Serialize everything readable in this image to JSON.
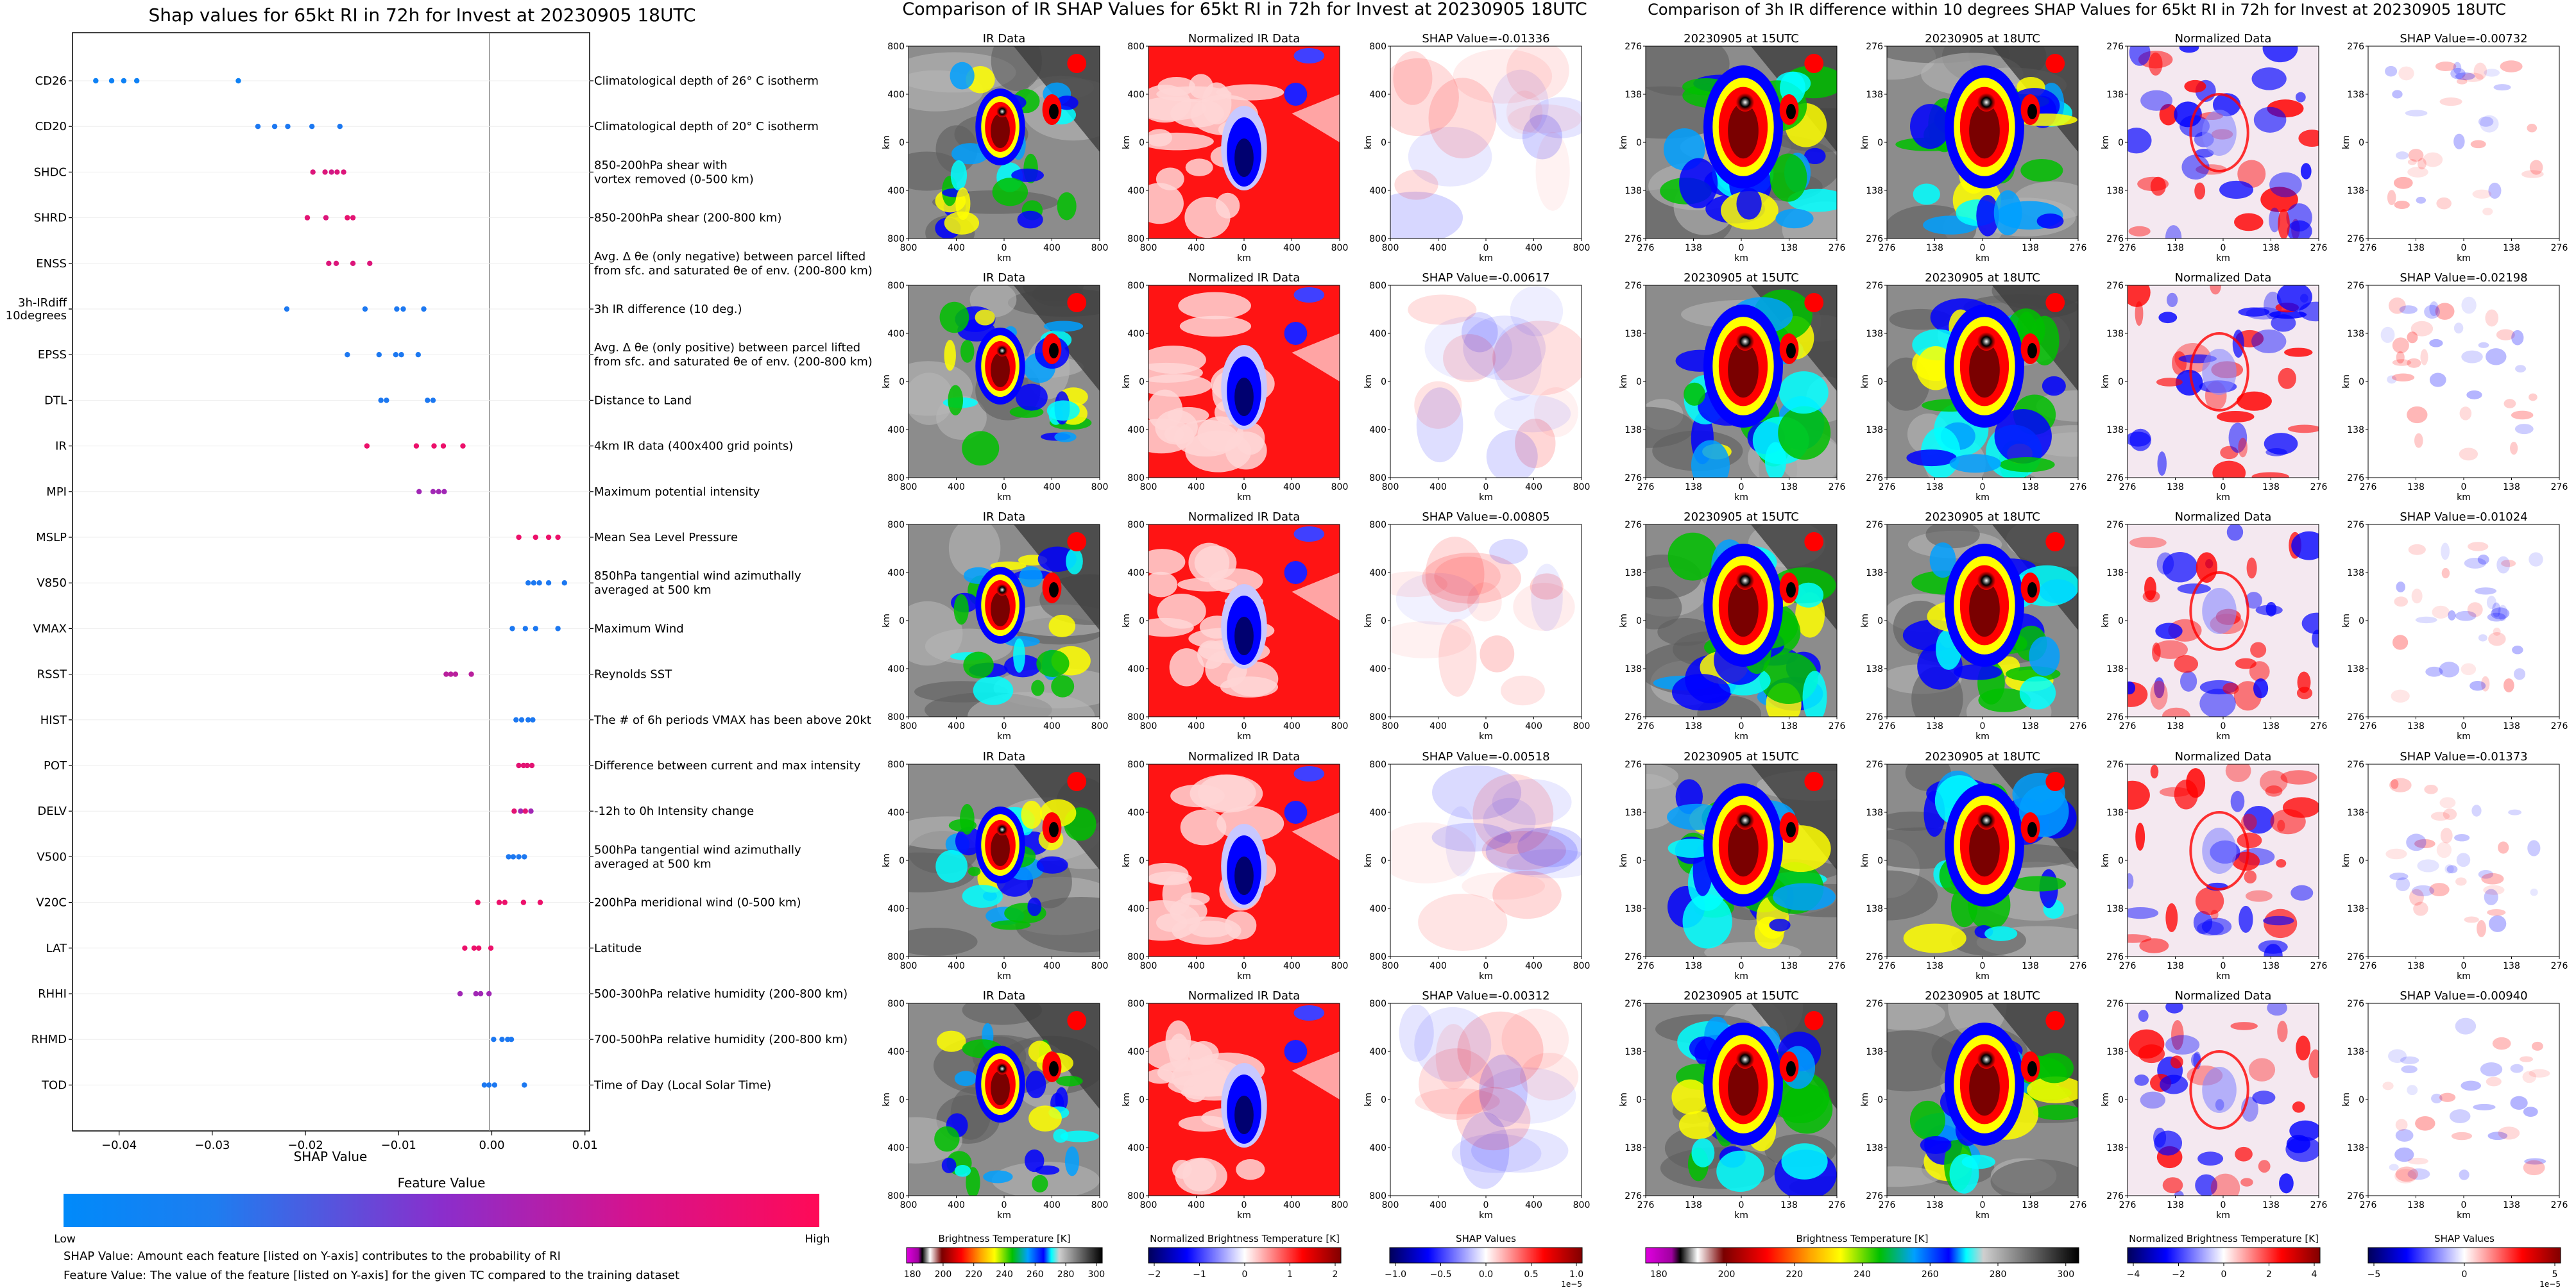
{
  "colors": {
    "feature_low": "#008afa",
    "feature_mid": "#8a2ecc",
    "feature_high": "#ff0a57",
    "shap_neg": "#0000ff",
    "shap_pos": "#ff0000"
  },
  "left": {
    "title": "Shap values for 65kt RI in 72h for Invest at 20230905 18UTC",
    "xlabel": "SHAP Value",
    "colorbar_title": "Feature Value",
    "colorbar_low": "Low",
    "colorbar_high": "High",
    "notes": [
      "SHAP Value: Amount each feature [listed on Y-axis] contributes to the probability of RI",
      "Feature Value: The value of the feature [listed on Y-axis] for the given TC compared to the training dataset"
    ]
  },
  "middle": {
    "title": "Comparison of IR SHAP Values for 65kt RI in 72h for Invest at 20230905 18UTC",
    "col_titles": [
      "IR Data",
      "Normalized IR Data"
    ],
    "shap_titles": [
      "SHAP Value=-0.01336",
      "SHAP Value=-0.00617",
      "SHAP Value=-0.00805",
      "SHAP Value=-0.00518",
      "SHAP Value=-0.00312"
    ],
    "yticks": [
      "800",
      "400",
      "0",
      "400",
      "800"
    ],
    "xticks": [
      "800",
      "400",
      "0",
      "400",
      "800"
    ],
    "axis_label": "km",
    "colorbars": [
      {
        "label": "Brightness Temperature [K]",
        "ticks": [
          "180",
          "200",
          "220",
          "240",
          "260",
          "280",
          "300"
        ]
      },
      {
        "label": "Normalized Brightness Temperature [K]",
        "ticks": [
          "−2",
          "−1",
          "0",
          "1",
          "2"
        ]
      },
      {
        "label": "SHAP Values",
        "ticks": [
          "−1.0",
          "−0.5",
          "0.0",
          "0.5",
          "1.0"
        ],
        "offset": "1e−5"
      }
    ]
  },
  "right": {
    "title": "Comparison of 3h IR difference within 10 degrees SHAP Values for 65kt RI in 72h for Invest at 20230905 18UTC",
    "col_titles": [
      "20230905 at 15UTC",
      "20230905 at 18UTC",
      "Normalized Data"
    ],
    "shap_titles": [
      "SHAP Value=-0.00732",
      "SHAP Value=-0.02198",
      "SHAP Value=-0.01024",
      "SHAP Value=-0.01373",
      "SHAP Value=-0.00940"
    ],
    "yticks": [
      "276",
      "138",
      "0",
      "138",
      "276"
    ],
    "xticks": [
      "276",
      "138",
      "0",
      "138",
      "276"
    ],
    "axis_label": "km",
    "colorbars": [
      {
        "label": "Brightness Temperature [K]",
        "ticks": [
          "180",
          "200",
          "220",
          "240",
          "260",
          "280",
          "300"
        ]
      },
      {
        "label": "Normalized Brightness Temperature [K]",
        "ticks": [
          "−4",
          "−2",
          "0",
          "2",
          "4"
        ]
      },
      {
        "label": "SHAP Values",
        "ticks": [
          "−5",
          "0",
          "5"
        ],
        "offset": "1e−5"
      }
    ]
  },
  "chart_data": {
    "type": "scatter",
    "title": "Shap values for 65kt RI in 72h for Invest at 20230905 18UTC",
    "xlabel": "SHAP Value",
    "xlim": [
      -0.045,
      0.0105
    ],
    "xticks": [
      -0.04,
      -0.03,
      -0.02,
      -0.01,
      0.0,
      0.01
    ],
    "xtick_labels": [
      "−0.04",
      "−0.03",
      "−0.02",
      "−0.01",
      "0.00",
      "0.01"
    ],
    "zero_line": true,
    "features": [
      {
        "name": "CD26",
        "desc": [
          "Climatological depth of 26° C isotherm"
        ],
        "shap": [
          -0.0425,
          -0.0408,
          -0.0395,
          -0.0381,
          -0.0272
        ],
        "fv": [
          0.05,
          0.05,
          0.05,
          0.05,
          0.05
        ]
      },
      {
        "name": "CD20",
        "desc": [
          "Climatological depth of 20° C isotherm"
        ],
        "shap": [
          -0.0251,
          -0.0233,
          -0.0219,
          -0.0193,
          -0.0163
        ],
        "fv": [
          0.1,
          0.1,
          0.1,
          0.1,
          0.1
        ]
      },
      {
        "name": "SHDC",
        "desc": [
          "850-200hPa shear with",
          "vortex removed (0-500 km)"
        ],
        "shap": [
          -0.0192,
          -0.0179,
          -0.0172,
          -0.0166,
          -0.0159
        ],
        "fv": [
          0.85,
          0.85,
          0.8,
          0.85,
          0.85
        ]
      },
      {
        "name": "SHRD",
        "desc": [
          "850-200hPa shear (200-800 km)"
        ],
        "shap": [
          -0.0198,
          -0.0178,
          -0.0155,
          -0.0149
        ],
        "fv": [
          0.88,
          0.85,
          0.9,
          0.88
        ]
      },
      {
        "name": "ENSS",
        "desc": [
          "Avg. Δ θe (only negative) between parcel lifted",
          "from sfc. and saturated θe of env. (200-800 km)"
        ],
        "shap": [
          -0.0175,
          -0.0167,
          -0.0149,
          -0.0131
        ],
        "fv": [
          0.85,
          0.85,
          0.85,
          0.85
        ]
      },
      {
        "name": "3h-IRdiff\n10degrees",
        "desc": [
          "3h IR difference (10 deg.)"
        ],
        "shap": [
          -0.022,
          -0.0136,
          -0.0102,
          -0.0095,
          -0.0073
        ],
        "fv": [
          0.1,
          0.1,
          0.1,
          0.1,
          0.1
        ]
      },
      {
        "name": "EPSS",
        "desc": [
          "Avg. Δ θe (only positive) between parcel lifted",
          "from sfc. and saturated θe of env. (200-800 km)"
        ],
        "shap": [
          -0.0155,
          -0.0121,
          -0.0103,
          -0.0097,
          -0.0079
        ],
        "fv": [
          0.1,
          0.1,
          0.1,
          0.1,
          0.1
        ]
      },
      {
        "name": "DTL",
        "desc": [
          "Distance to Land"
        ],
        "shap": [
          -0.0119,
          -0.0113,
          -0.0069,
          -0.0063
        ],
        "fv": [
          0.1,
          0.1,
          0.1,
          0.1
        ]
      },
      {
        "name": "IR",
        "desc": [
          "4km IR data (400x400 grid points)"
        ],
        "shap": [
          -0.0134,
          -0.0081,
          -0.0062,
          -0.0052,
          -0.0031
        ],
        "fv": [
          0.92,
          0.92,
          0.92,
          0.92,
          0.92
        ]
      },
      {
        "name": "MPI",
        "desc": [
          "Maximum potential intensity"
        ],
        "shap": [
          -0.0078,
          -0.0063,
          -0.0057,
          -0.0051
        ],
        "fv": [
          0.6,
          0.6,
          0.6,
          0.6
        ]
      },
      {
        "name": "MSLP",
        "desc": [
          "Mean Sea Level Pressure"
        ],
        "shap": [
          0.0029,
          0.0047,
          0.0061,
          0.0071
        ],
        "fv": [
          0.92,
          0.92,
          0.92,
          0.92
        ]
      },
      {
        "name": "V850",
        "desc": [
          "850hPa tangential wind azimuthally",
          "averaged at 500 km"
        ],
        "shap": [
          0.0039,
          0.0045,
          0.0051,
          0.0061,
          0.0078
        ],
        "fv": [
          0.1,
          0.1,
          0.1,
          0.1,
          0.1
        ]
      },
      {
        "name": "VMAX",
        "desc": [
          "Maximum Wind"
        ],
        "shap": [
          0.0022,
          0.0036,
          0.0047,
          0.0071
        ],
        "fv": [
          0.1,
          0.1,
          0.1,
          0.1
        ]
      },
      {
        "name": "RSST",
        "desc": [
          "Reynolds SST"
        ],
        "shap": [
          -0.0049,
          -0.0044,
          -0.0039,
          -0.0022
        ],
        "fv": [
          0.7,
          0.7,
          0.7,
          0.7
        ]
      },
      {
        "name": "HIST",
        "desc": [
          "The # of 6h periods VMAX has been above 20kt"
        ],
        "shap": [
          0.0026,
          0.0032,
          0.0039,
          0.0044
        ],
        "fv": [
          0.1,
          0.1,
          0.1,
          0.1
        ]
      },
      {
        "name": "POT",
        "desc": [
          "Difference between current and max intensity"
        ],
        "shap": [
          0.0029,
          0.0034,
          0.0038,
          0.0043
        ],
        "fv": [
          0.88,
          0.88,
          0.88,
          0.88
        ]
      },
      {
        "name": "DELV",
        "desc": [
          "-12h to 0h Intensity change"
        ],
        "shap": [
          0.0024,
          0.0031,
          0.0036,
          0.0042
        ],
        "fv": [
          0.88,
          0.6,
          0.88,
          0.6
        ]
      },
      {
        "name": "V500",
        "desc": [
          "500hPa tangential wind azimuthally",
          "averaged at 500 km"
        ],
        "shap": [
          0.0018,
          0.0023,
          0.0029,
          0.0035
        ],
        "fv": [
          0.1,
          0.1,
          0.1,
          0.1
        ]
      },
      {
        "name": "V20C",
        "desc": [
          "200hPa meridional wind (0-500 km)"
        ],
        "shap": [
          -0.0015,
          0.0008,
          0.0014,
          0.0034,
          0.0052
        ],
        "fv": [
          0.92,
          0.92,
          0.92,
          0.92,
          0.92
        ]
      },
      {
        "name": "LAT",
        "desc": [
          "Latitude"
        ],
        "shap": [
          -0.0029,
          -0.0019,
          -0.0014,
          -0.0001
        ],
        "fv": [
          0.92,
          0.92,
          0.92,
          0.92
        ]
      },
      {
        "name": "RHHI",
        "desc": [
          "500-300hPa relative humidity (200-800 km)"
        ],
        "shap": [
          -0.0034,
          -0.0017,
          -0.0012,
          -0.0003
        ],
        "fv": [
          0.6,
          0.6,
          0.6,
          0.6
        ]
      },
      {
        "name": "RHMD",
        "desc": [
          "700-500hPa relative humidity (200-800 km)"
        ],
        "shap": [
          0.0002,
          0.0011,
          0.0017,
          0.0021
        ],
        "fv": [
          0.1,
          0.1,
          0.1,
          0.1
        ]
      },
      {
        "name": "TOD",
        "desc": [
          "Time of Day (Local Solar Time)"
        ],
        "shap": [
          -0.0008,
          -0.0003,
          0.0003,
          0.0035
        ],
        "fv": [
          0.1,
          0.1,
          0.1,
          0.1
        ]
      }
    ]
  }
}
